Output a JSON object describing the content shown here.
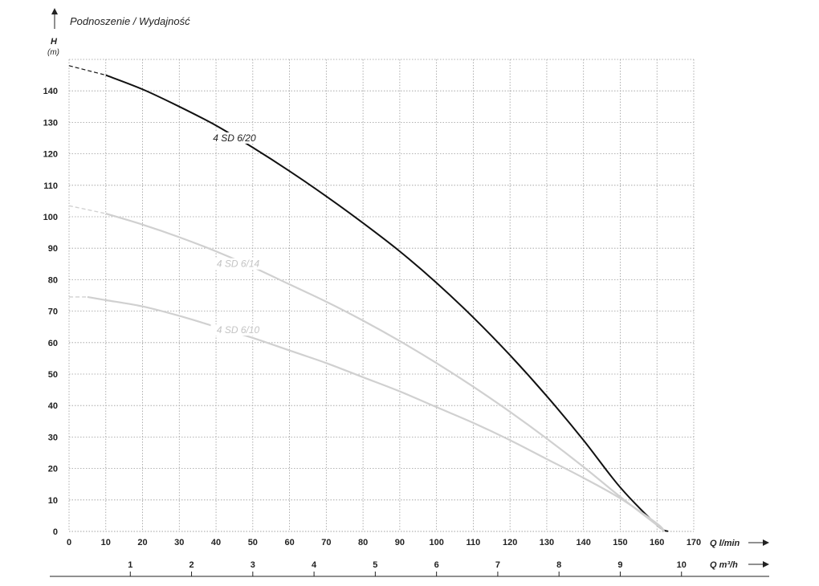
{
  "chart_data": {
    "type": "line",
    "title": "Podnoszenie / Wydajność",
    "ylabel": "H",
    "yunit": "(m)",
    "xlabel": "Q l/min",
    "x2label": "Q m³/h",
    "xlim": [
      0,
      170
    ],
    "ylim": [
      0,
      150
    ],
    "x_ticks": [
      "0",
      "10",
      "20",
      "30",
      "40",
      "50",
      "60",
      "70",
      "80",
      "90",
      "100",
      "110",
      "120",
      "130",
      "140",
      "150",
      "160",
      "170"
    ],
    "y_ticks": [
      "0",
      "10",
      "20",
      "30",
      "40",
      "50",
      "60",
      "70",
      "80",
      "90",
      "100",
      "110",
      "120",
      "130",
      "140"
    ],
    "x2_ticks": [
      "1",
      "2",
      "3",
      "4",
      "5",
      "6",
      "7",
      "8",
      "9",
      "10"
    ],
    "grid": true,
    "series": [
      {
        "name": "4 SD 6/20",
        "color": "#111111",
        "label_at": [
          45,
          124
        ],
        "points": [
          [
            0,
            148
          ],
          [
            10,
            145
          ],
          [
            20,
            140.5
          ],
          [
            30,
            135
          ],
          [
            40,
            129
          ],
          [
            50,
            122
          ],
          [
            60,
            114.5
          ],
          [
            70,
            106.5
          ],
          [
            80,
            98
          ],
          [
            90,
            89
          ],
          [
            100,
            79
          ],
          [
            110,
            68
          ],
          [
            120,
            56
          ],
          [
            130,
            43
          ],
          [
            140,
            29
          ],
          [
            150,
            14
          ],
          [
            160,
            2
          ],
          [
            163,
            0
          ]
        ],
        "dashed_until": 10
      },
      {
        "name": "4 SD 6/14",
        "color": "#d0d0d0",
        "label_at": [
          46,
          84
        ],
        "points": [
          [
            0,
            103.5
          ],
          [
            10,
            101
          ],
          [
            20,
            97.5
          ],
          [
            30,
            93.5
          ],
          [
            40,
            89
          ],
          [
            50,
            84
          ],
          [
            60,
            78.5
          ],
          [
            70,
            73
          ],
          [
            80,
            67
          ],
          [
            90,
            60.5
          ],
          [
            100,
            53.5
          ],
          [
            110,
            46
          ],
          [
            120,
            38
          ],
          [
            130,
            29.5
          ],
          [
            140,
            20.5
          ],
          [
            150,
            11
          ],
          [
            160,
            2
          ],
          [
            162,
            0
          ]
        ],
        "dashed_until": 10
      },
      {
        "name": "4 SD 6/10",
        "color": "#d0d0d0",
        "label_at": [
          46,
          63
        ],
        "points": [
          [
            0,
            74.5
          ],
          [
            5,
            74.5
          ],
          [
            10,
            73.5
          ],
          [
            20,
            71.5
          ],
          [
            30,
            68.5
          ],
          [
            40,
            65
          ],
          [
            50,
            61.5
          ],
          [
            60,
            57.5
          ],
          [
            70,
            53.5
          ],
          [
            80,
            49
          ],
          [
            90,
            44.5
          ],
          [
            100,
            39.5
          ],
          [
            110,
            34.5
          ],
          [
            120,
            29
          ],
          [
            130,
            23
          ],
          [
            140,
            17
          ],
          [
            150,
            10.5
          ],
          [
            160,
            2.5
          ],
          [
            162,
            0
          ]
        ],
        "dashed_until": 5
      }
    ]
  }
}
